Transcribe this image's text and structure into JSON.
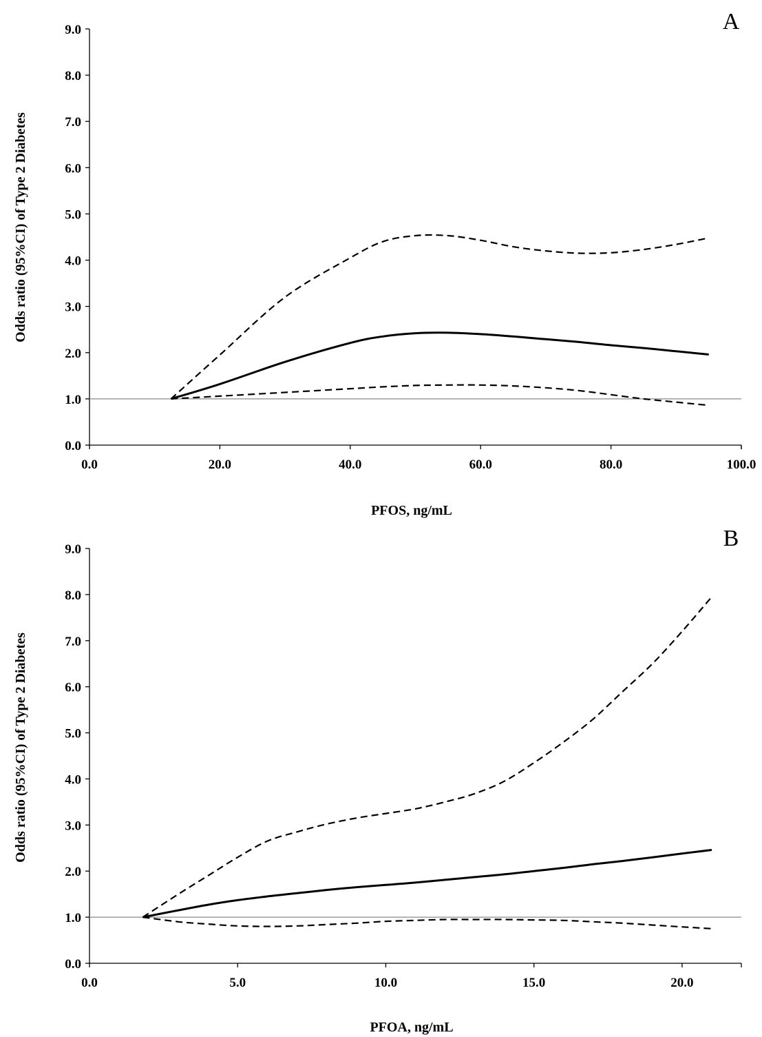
{
  "chart_data": [
    {
      "panel": "A",
      "type": "line",
      "xlabel": "PFOS, ng/mL",
      "ylabel": "Odds ratio (95%CI)  of Type 2 Diabetes",
      "xlim": [
        0,
        100
      ],
      "ylim": [
        0,
        9
      ],
      "x_ticks": [
        "0.0",
        "20.0",
        "40.0",
        "60.0",
        "80.0",
        "100.0"
      ],
      "y_ticks": [
        "0.0",
        "1.0",
        "2.0",
        "3.0",
        "4.0",
        "5.0",
        "6.0",
        "7.0",
        "8.0",
        "9.0"
      ],
      "reference_y": 1.0,
      "x": [
        12.5,
        20,
        30,
        40,
        45,
        50,
        55,
        60,
        65,
        70,
        75,
        80,
        85,
        90,
        95
      ],
      "series": [
        {
          "style": "solid",
          "values": [
            1.0,
            1.32,
            1.8,
            2.21,
            2.35,
            2.42,
            2.43,
            2.4,
            2.35,
            2.29,
            2.23,
            2.16,
            2.1,
            2.03,
            1.96
          ]
        },
        {
          "style": "dashed",
          "values": [
            1.0,
            1.95,
            3.2,
            4.05,
            4.4,
            4.53,
            4.53,
            4.43,
            4.29,
            4.2,
            4.15,
            4.16,
            4.23,
            4.34,
            4.48
          ]
        },
        {
          "style": "dashed",
          "values": [
            1.0,
            1.06,
            1.14,
            1.22,
            1.26,
            1.29,
            1.3,
            1.3,
            1.28,
            1.24,
            1.18,
            1.09,
            1.0,
            0.93,
            0.86
          ]
        }
      ]
    },
    {
      "panel": "B",
      "type": "line",
      "xlabel": "PFOA, ng/mL",
      "ylabel": "Odds ratio (95%CI)  of Type 2 Diabetes",
      "xlim": [
        0,
        22
      ],
      "ylim": [
        0,
        9
      ],
      "x_ticks": [
        "0.0",
        "5.0",
        "10.0",
        "15.0",
        "20.0"
      ],
      "x_tick_values": [
        0,
        5,
        10,
        15,
        20
      ],
      "y_ticks": [
        "0.0",
        "1.0",
        "2.0",
        "3.0",
        "4.0",
        "5.0",
        "6.0",
        "7.0",
        "8.0",
        "9.0"
      ],
      "reference_y": 1.0,
      "x": [
        1.8,
        3,
        4,
        5,
        6,
        7,
        8,
        9,
        10,
        11,
        12,
        13,
        14,
        15,
        16,
        17,
        18,
        19,
        20,
        21
      ],
      "series": [
        {
          "style": "solid",
          "values": [
            1.0,
            1.15,
            1.27,
            1.37,
            1.45,
            1.52,
            1.59,
            1.65,
            1.7,
            1.75,
            1.81,
            1.87,
            1.93,
            2.0,
            2.07,
            2.15,
            2.22,
            2.3,
            2.38,
            2.46
          ]
        },
        {
          "style": "dashed",
          "values": [
            1.0,
            1.5,
            1.9,
            2.3,
            2.65,
            2.85,
            3.02,
            3.15,
            3.25,
            3.35,
            3.5,
            3.68,
            3.95,
            4.35,
            4.8,
            5.3,
            5.9,
            6.5,
            7.2,
            7.95
          ]
        },
        {
          "style": "dashed",
          "values": [
            1.0,
            0.9,
            0.85,
            0.81,
            0.8,
            0.81,
            0.84,
            0.87,
            0.91,
            0.93,
            0.95,
            0.95,
            0.95,
            0.94,
            0.93,
            0.9,
            0.87,
            0.83,
            0.79,
            0.75
          ]
        }
      ]
    }
  ]
}
